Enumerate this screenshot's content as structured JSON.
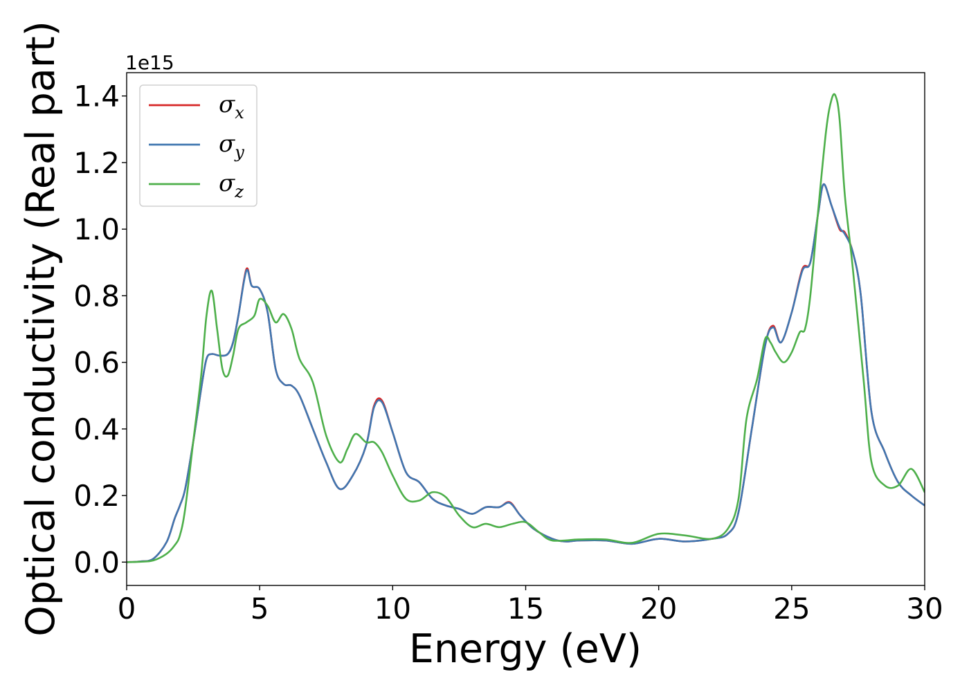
{
  "chart_data": {
    "type": "line",
    "xlabel": "Energy (eV)",
    "ylabel": "Optical conductivity (Real part)",
    "y_offset_label": "1e15",
    "xlim": [
      0,
      30
    ],
    "ylim": [
      -0.07,
      1.47
    ],
    "x_ticks": [
      0,
      5,
      10,
      15,
      20,
      25,
      30
    ],
    "x_tick_labels": [
      "0",
      "5",
      "10",
      "15",
      "20",
      "25",
      "30"
    ],
    "y_ticks": [
      0.0,
      0.2,
      0.4,
      0.6,
      0.8,
      1.0,
      1.2,
      1.4
    ],
    "y_tick_labels": [
      "0.0",
      "0.2",
      "0.4",
      "0.6",
      "0.8",
      "1.0",
      "1.2",
      "1.4"
    ],
    "grid": false,
    "legend_position": "top-left",
    "series": [
      {
        "name": "σx",
        "symbol": "σ",
        "subscript": "x",
        "color": "#d62728",
        "x": [
          0,
          0.5,
          1.0,
          1.5,
          1.8,
          2.0,
          2.2,
          2.5,
          2.8,
          3.0,
          3.2,
          3.5,
          3.8,
          4.0,
          4.2,
          4.5,
          4.7,
          5.0,
          5.3,
          5.6,
          5.9,
          6.2,
          6.5,
          7.0,
          7.5,
          8.0,
          8.5,
          9.0,
          9.3,
          9.6,
          10.0,
          10.5,
          11.0,
          11.5,
          12.0,
          12.5,
          13.0,
          13.5,
          14.0,
          14.4,
          14.8,
          15.3,
          16.0,
          16.5,
          17.0,
          18.0,
          19.0,
          20.0,
          21.0,
          22.0,
          22.6,
          23.0,
          23.5,
          24.0,
          24.3,
          24.6,
          25.0,
          25.4,
          25.7,
          26.0,
          26.2,
          26.5,
          26.8,
          27.0,
          27.3,
          27.6,
          28.0,
          28.5,
          29.0,
          29.5,
          30.0
        ],
        "y": [
          0,
          0.002,
          0.01,
          0.06,
          0.13,
          0.17,
          0.22,
          0.36,
          0.52,
          0.61,
          0.625,
          0.62,
          0.625,
          0.66,
          0.74,
          0.88,
          0.83,
          0.82,
          0.75,
          0.58,
          0.535,
          0.53,
          0.5,
          0.4,
          0.3,
          0.22,
          0.26,
          0.35,
          0.47,
          0.485,
          0.39,
          0.27,
          0.24,
          0.19,
          0.17,
          0.16,
          0.145,
          0.165,
          0.165,
          0.18,
          0.14,
          0.1,
          0.07,
          0.062,
          0.065,
          0.065,
          0.055,
          0.07,
          0.062,
          0.07,
          0.085,
          0.15,
          0.4,
          0.65,
          0.71,
          0.66,
          0.75,
          0.88,
          0.9,
          1.05,
          1.135,
          1.07,
          1.0,
          0.99,
          0.93,
          0.8,
          0.45,
          0.33,
          0.24,
          0.2,
          0.17
        ]
      },
      {
        "name": "σy",
        "symbol": "σ",
        "subscript": "y",
        "color": "#3f76b0",
        "x": [
          0,
          0.5,
          1.0,
          1.5,
          1.8,
          2.0,
          2.2,
          2.5,
          2.8,
          3.0,
          3.2,
          3.5,
          3.8,
          4.0,
          4.2,
          4.5,
          4.7,
          5.0,
          5.3,
          5.6,
          5.9,
          6.2,
          6.5,
          7.0,
          7.5,
          8.0,
          8.5,
          9.0,
          9.3,
          9.6,
          10.0,
          10.5,
          11.0,
          11.5,
          12.0,
          12.5,
          13.0,
          13.5,
          14.0,
          14.4,
          14.8,
          15.3,
          16.0,
          16.5,
          17.0,
          18.0,
          19.0,
          20.0,
          21.0,
          22.0,
          22.6,
          23.0,
          23.5,
          24.0,
          24.3,
          24.6,
          25.0,
          25.4,
          25.7,
          26.0,
          26.2,
          26.5,
          26.8,
          27.0,
          27.3,
          27.6,
          28.0,
          28.5,
          29.0,
          29.5,
          30.0
        ],
        "y": [
          0,
          0.002,
          0.01,
          0.06,
          0.13,
          0.17,
          0.22,
          0.36,
          0.52,
          0.61,
          0.625,
          0.62,
          0.625,
          0.66,
          0.74,
          0.875,
          0.83,
          0.82,
          0.75,
          0.58,
          0.535,
          0.53,
          0.5,
          0.4,
          0.3,
          0.22,
          0.26,
          0.35,
          0.465,
          0.48,
          0.39,
          0.27,
          0.24,
          0.19,
          0.17,
          0.16,
          0.145,
          0.165,
          0.165,
          0.178,
          0.14,
          0.1,
          0.07,
          0.062,
          0.065,
          0.065,
          0.055,
          0.07,
          0.062,
          0.07,
          0.085,
          0.15,
          0.4,
          0.65,
          0.705,
          0.66,
          0.75,
          0.875,
          0.9,
          1.05,
          1.135,
          1.07,
          1.005,
          0.985,
          0.93,
          0.8,
          0.45,
          0.33,
          0.24,
          0.2,
          0.17
        ]
      },
      {
        "name": "σz",
        "symbol": "σ",
        "subscript": "z",
        "color": "#4daf4a",
        "x": [
          0,
          0.5,
          1.0,
          1.5,
          1.8,
          2.0,
          2.2,
          2.5,
          2.8,
          3.0,
          3.2,
          3.4,
          3.6,
          3.8,
          4.0,
          4.2,
          4.5,
          4.8,
          5.0,
          5.3,
          5.6,
          5.9,
          6.2,
          6.5,
          7.0,
          7.5,
          8.0,
          8.3,
          8.6,
          9.0,
          9.3,
          9.6,
          10.0,
          10.5,
          11.0,
          11.5,
          12.0,
          12.5,
          13.0,
          13.5,
          14.0,
          14.5,
          15.0,
          15.5,
          16.0,
          17.0,
          18.0,
          19.0,
          20.0,
          21.0,
          22.0,
          22.6,
          23.0,
          23.3,
          23.7,
          24.0,
          24.2,
          24.4,
          24.7,
          25.0,
          25.3,
          25.5,
          25.7,
          26.0,
          26.3,
          26.5,
          26.65,
          26.8,
          27.0,
          27.3,
          27.7,
          28.0,
          28.5,
          29.0,
          29.5,
          30.0
        ],
        "y": [
          0,
          0.001,
          0.005,
          0.025,
          0.05,
          0.08,
          0.16,
          0.36,
          0.56,
          0.74,
          0.815,
          0.7,
          0.58,
          0.56,
          0.62,
          0.7,
          0.72,
          0.74,
          0.79,
          0.77,
          0.72,
          0.745,
          0.7,
          0.61,
          0.54,
          0.38,
          0.3,
          0.34,
          0.385,
          0.36,
          0.36,
          0.33,
          0.26,
          0.19,
          0.185,
          0.21,
          0.195,
          0.14,
          0.105,
          0.115,
          0.105,
          0.115,
          0.12,
          0.09,
          0.065,
          0.068,
          0.068,
          0.058,
          0.085,
          0.08,
          0.07,
          0.1,
          0.19,
          0.43,
          0.55,
          0.67,
          0.66,
          0.63,
          0.6,
          0.63,
          0.69,
          0.7,
          0.8,
          1.06,
          1.3,
          1.39,
          1.4,
          1.33,
          1.1,
          0.88,
          0.55,
          0.3,
          0.23,
          0.23,
          0.28,
          0.21
        ]
      }
    ]
  }
}
